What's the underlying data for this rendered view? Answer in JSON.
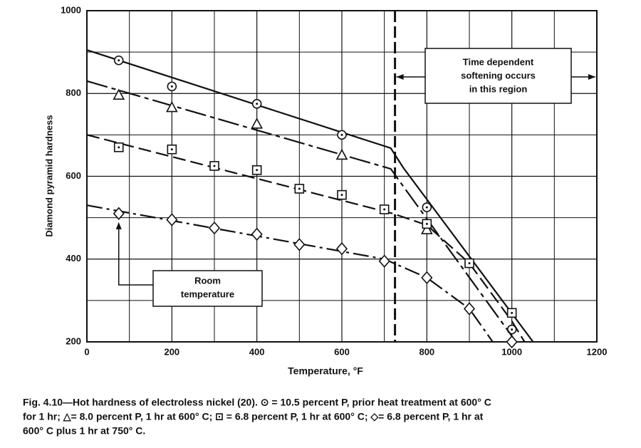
{
  "chart_data": {
    "type": "line",
    "y_label": "Diamond pyramid hardness",
    "x_label": "Temperature, °F",
    "xlim": [
      0,
      1200
    ],
    "ylim": [
      200,
      1000
    ],
    "xticks": [
      0,
      200,
      400,
      600,
      800,
      1000,
      1200
    ],
    "yticks": [
      200,
      400,
      600,
      800,
      1000
    ],
    "xminor": [
      100,
      300,
      500,
      700,
      900,
      1100
    ],
    "yminor": [
      300,
      500,
      700,
      900
    ],
    "grid": true,
    "color": "#111111",
    "vline": 725,
    "annotations": [
      {
        "lines": [
          "Time dependent",
          "softening occurs",
          "in this region"
        ]
      },
      {
        "lines": [
          "Room",
          "temperature"
        ]
      }
    ],
    "series": [
      {
        "marker": "circle",
        "x": [
          75,
          200,
          400,
          600,
          800,
          900,
          1000
        ],
        "values": [
          880,
          817,
          775,
          700,
          525,
          390,
          230
        ],
        "curve_x": [
          0,
          715,
          745,
          1050
        ],
        "curve_y": [
          905,
          668,
          620,
          200
        ]
      },
      {
        "marker": "triangle",
        "x": [
          75,
          200,
          400,
          600,
          800
        ],
        "values": [
          795,
          765,
          725,
          650,
          470
        ],
        "curve_x": [
          0,
          715,
          745,
          1010
        ],
        "curve_y": [
          830,
          618,
          575,
          200
        ]
      },
      {
        "marker": "square",
        "x": [
          75,
          200,
          300,
          400,
          500,
          600,
          700,
          800,
          900,
          1000
        ],
        "values": [
          670,
          665,
          625,
          615,
          570,
          555,
          520,
          485,
          390,
          270
        ],
        "curve_x": [
          0,
          720,
          800,
          900,
          1000,
          1030
        ],
        "curve_y": [
          700,
          510,
          482,
          390,
          250,
          200
        ]
      },
      {
        "marker": "diamond",
        "x": [
          75,
          200,
          300,
          400,
          500,
          600,
          700,
          800,
          900,
          1000
        ],
        "values": [
          510,
          495,
          475,
          460,
          435,
          425,
          395,
          355,
          280,
          200
        ],
        "curve_x": [
          0,
          700,
          800,
          900,
          955
        ],
        "curve_y": [
          530,
          400,
          355,
          280,
          200
        ]
      }
    ],
    "caption": [
      "Fig. 4.10—Hot hardness of electroless nickel (20).  ⊙ = 10.5 percent P, prior heat treatment at 600° C",
      "for 1 hr; △= 8.0 percent P, 1 hr at 600° C; ⊡ = 6.8 percent P, 1 hr at 600° C; ◇= 6.8 percent P, 1 hr at",
      "600° C plus 1 hr at 750° C."
    ]
  }
}
